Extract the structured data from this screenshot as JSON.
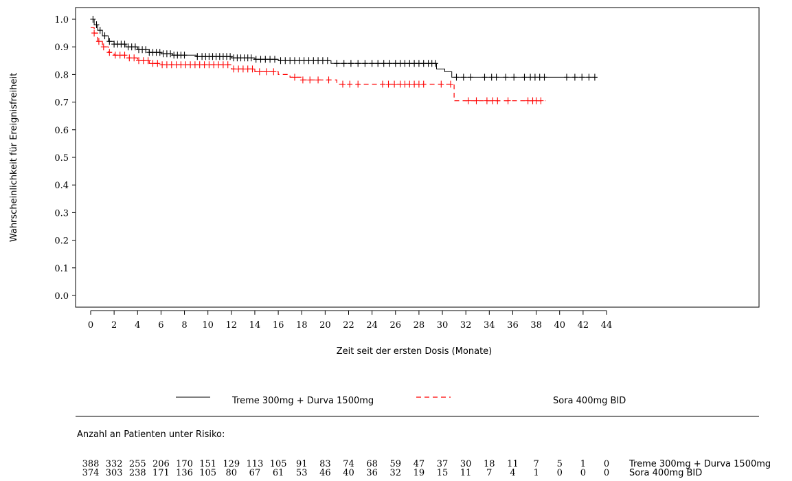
{
  "chart_data": {
    "type": "line",
    "title": "",
    "xlabel": "Zeit seit der ersten Dosis (Monate)",
    "ylabel": "Wahrscheinlichkeit für Ereignisfreiheit",
    "xlim": [
      0,
      44
    ],
    "ylim": [
      0.0,
      1.0
    ],
    "x_ticks": [
      "0",
      "2",
      "4",
      "6",
      "8",
      "10",
      "12",
      "14",
      "16",
      "18",
      "20",
      "22",
      "24",
      "26",
      "28",
      "30",
      "32",
      "34",
      "36",
      "38",
      "40",
      "42",
      "44"
    ],
    "y_ticks": [
      "0.0",
      "0.1",
      "0.2",
      "0.3",
      "0.4",
      "0.5",
      "0.6",
      "0.7",
      "0.8",
      "0.9",
      "1.0"
    ],
    "grid": false,
    "legend_placement": "bottom",
    "series": [
      {
        "name": "Treme 300mg + Durva 1500mg",
        "color": "#000000",
        "line_style": "solid",
        "x": [
          0,
          0.3,
          0.6,
          1.0,
          1.5,
          2.0,
          3.0,
          4.0,
          5.0,
          6.0,
          7.0,
          9.0,
          12.0,
          14.0,
          16.0,
          20.5,
          29.5,
          30.2,
          30.8,
          43.0
        ],
        "y": [
          1.0,
          0.98,
          0.96,
          0.94,
          0.92,
          0.91,
          0.9,
          0.89,
          0.88,
          0.875,
          0.87,
          0.865,
          0.86,
          0.855,
          0.85,
          0.84,
          0.82,
          0.81,
          0.79,
          0.79
        ],
        "censor_x": [
          0.2,
          0.5,
          0.8,
          1.2,
          1.6,
          2.0,
          2.3,
          2.6,
          2.9,
          3.2,
          3.5,
          3.8,
          4.1,
          4.4,
          4.7,
          5.0,
          5.3,
          5.6,
          5.9,
          6.2,
          6.5,
          6.8,
          7.1,
          7.4,
          7.7,
          8.0,
          9.1,
          9.5,
          9.8,
          10.1,
          10.4,
          10.7,
          11.0,
          11.3,
          11.6,
          11.9,
          12.2,
          12.5,
          12.8,
          13.1,
          13.4,
          13.7,
          14.1,
          14.5,
          14.9,
          15.3,
          15.7,
          16.2,
          16.6,
          17.0,
          17.4,
          17.8,
          18.2,
          18.6,
          19.0,
          19.4,
          19.8,
          20.2,
          21.0,
          21.6,
          22.2,
          22.8,
          23.4,
          24.0,
          24.5,
          25.0,
          25.5,
          26.0,
          26.4,
          26.8,
          27.2,
          27.6,
          28.0,
          28.4,
          28.8,
          29.1,
          29.4,
          31.2,
          31.8,
          32.4,
          33.6,
          34.2,
          34.6,
          35.4,
          36.1,
          37.0,
          37.5,
          37.9,
          38.3,
          38.7,
          40.6,
          41.3,
          41.9,
          42.5,
          43.0
        ]
      },
      {
        "name": "Sora 400mg BID",
        "color": "#ff0000",
        "line_style": "dashed",
        "x": [
          0,
          0.3,
          0.6,
          1.0,
          1.5,
          2.0,
          3.0,
          4.0,
          5.0,
          6.0,
          12.0,
          14.0,
          16.0,
          17.0,
          18.0,
          21.0,
          31.0,
          38.8
        ],
        "y": [
          0.97,
          0.95,
          0.92,
          0.9,
          0.88,
          0.87,
          0.86,
          0.85,
          0.84,
          0.835,
          0.82,
          0.81,
          0.8,
          0.79,
          0.78,
          0.765,
          0.705,
          0.705
        ],
        "censor_x": [
          0.3,
          0.7,
          1.1,
          1.6,
          2.1,
          2.5,
          2.9,
          3.3,
          3.7,
          4.1,
          4.5,
          4.9,
          5.3,
          5.7,
          6.1,
          6.5,
          6.9,
          7.3,
          7.7,
          8.1,
          8.5,
          8.9,
          9.3,
          9.7,
          10.1,
          10.5,
          10.9,
          11.3,
          11.7,
          12.2,
          12.6,
          13.0,
          13.4,
          13.8,
          14.4,
          15.0,
          15.6,
          17.4,
          18.1,
          18.7,
          19.4,
          20.3,
          21.5,
          22.1,
          22.8,
          24.9,
          25.4,
          25.9,
          26.4,
          26.8,
          27.2,
          27.6,
          28.0,
          28.4,
          29.9,
          30.7,
          32.2,
          32.9,
          33.8,
          34.3,
          34.7,
          35.6,
          37.3,
          37.7,
          38.0,
          38.4
        ]
      }
    ],
    "legend": [
      {
        "label": "Treme 300mg + Durva 1500mg",
        "color": "#000000",
        "line_style": "solid"
      },
      {
        "label": "Sora 400mg BID",
        "color": "#ff0000",
        "line_style": "dashed"
      }
    ],
    "risk_table": {
      "title": "Anzahl an Patienten unter Risiko:",
      "rows": [
        {
          "name": "Treme 300mg + Durva 1500mg",
          "values": [
            "388",
            "332",
            "255",
            "206",
            "170",
            "151",
            "129",
            "113",
            "105",
            "91",
            "83",
            "74",
            "68",
            "59",
            "47",
            "37",
            "30",
            "18",
            "11",
            "7",
            "5",
            "1",
            "0"
          ]
        },
        {
          "name": "Sora 400mg BID",
          "values": [
            "374",
            "303",
            "238",
            "171",
            "136",
            "105",
            "80",
            "67",
            "61",
            "53",
            "46",
            "40",
            "36",
            "32",
            "19",
            "15",
            "11",
            "7",
            "4",
            "1",
            "0",
            "0",
            "0"
          ]
        }
      ]
    }
  }
}
